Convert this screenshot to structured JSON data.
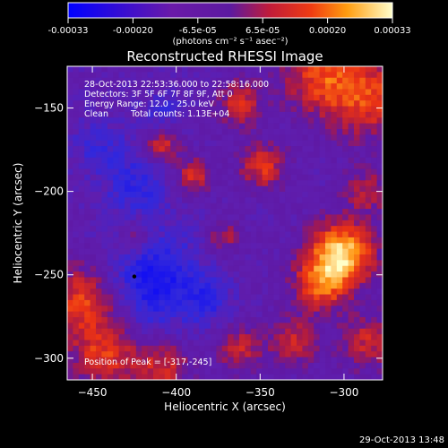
{
  "chart_data": {
    "type": "heatmap",
    "title": "Reconstructed RHESSI Image",
    "xlabel": "Heliocentric X (arcsec)",
    "ylabel": "Heliocentric Y (arcsec)",
    "xlim": [
      -465,
      -277
    ],
    "ylim": [
      -313,
      -125
    ],
    "x_ticks": [
      -450,
      -400,
      -350,
      -300
    ],
    "y_ticks": [
      -150,
      -200,
      -250,
      -300
    ],
    "colorbar": {
      "range": [
        -0.00033,
        0.00033
      ],
      "ticks": [
        "-0.00033",
        "-0.00020",
        "-6.5e-05",
        "6.5e-05",
        "0.00020",
        "0.00033"
      ],
      "unit_label": "(photons cm⁻² s⁻¹ asec⁻²)"
    },
    "annotations": [
      "28-Oct-2013 22:53:36.000 to 22:58:16.000",
      "Detectors: 3F 5F 6F 7F 8F 9F, Att 0",
      "Energy Range: 12.0 - 25.0 keV",
      "Clean",
      "Total counts: 1.13E+04"
    ],
    "peak_label": "Position of Peak = [-317,-245]",
    "peak": [
      -317,
      -245
    ],
    "min_marker": [
      -425,
      -251
    ]
  },
  "footer_timestamp": "29-Oct-2013 13:48"
}
